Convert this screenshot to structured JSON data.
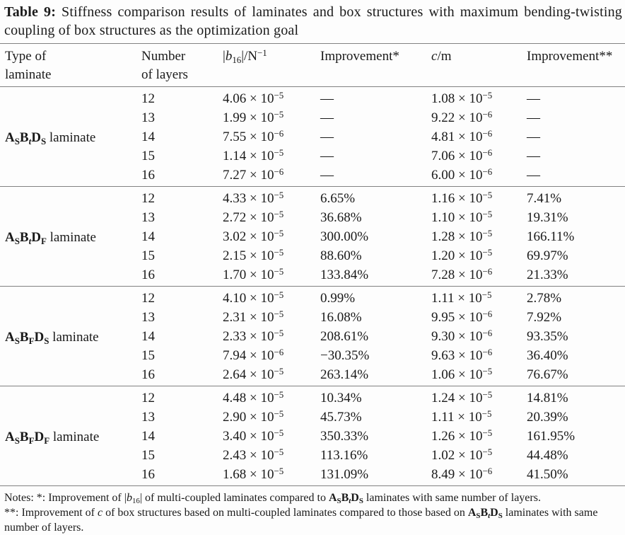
{
  "colors": {
    "background": "#fdfdfd",
    "text": "#1a1a1a",
    "rule": "#818181"
  },
  "caption": "{b}Table 9:{/b} Stiffness comparison results of laminates and box structures with maximum bending-twisting coupling of box structures as the optimization goal",
  "table": {
    "headers": [
      "Type of\nlaminate",
      "Number\nof layers",
      "|{i}b{/i}{sub}16{/sub}|/N{sup}−1{/sup}",
      "Improvement*",
      "{i}c{/i}/m",
      "Improvement**"
    ],
    "groups": [
      {
        "laminate": "{b}A{sub}S{/sub}B{sub}{i}t{/i}{/sub}D{sub}S{/sub}{/b} laminate",
        "rows": [
          {
            "layers": "12",
            "b16": "4.06 × 10{sup}−5{/sup}",
            "imp1": "—",
            "c": "1.08 × 10{sup}−5{/sup}",
            "imp2": "—"
          },
          {
            "layers": "13",
            "b16": "1.99 × 10{sup}−5{/sup}",
            "imp1": "—",
            "c": "9.22 × 10{sup}−6{/sup}",
            "imp2": "—"
          },
          {
            "layers": "14",
            "b16": "7.55 × 10{sup}−6{/sup}",
            "imp1": "—",
            "c": "4.81 × 10{sup}−6{/sup}",
            "imp2": "—"
          },
          {
            "layers": "15",
            "b16": "1.14 × 10{sup}−5{/sup}",
            "imp1": "—",
            "c": "7.06 × 10{sup}−6{/sup}",
            "imp2": "—"
          },
          {
            "layers": "16",
            "b16": "7.27 × 10{sup}−6{/sup}",
            "imp1": "—",
            "c": "6.00 × 10{sup}−6{/sup}",
            "imp2": "—"
          }
        ]
      },
      {
        "laminate": "{b}A{sub}S{/sub}B{sub}{i}t{/i}{/sub}D{sub}F{/sub}{/b} laminate",
        "rows": [
          {
            "layers": "12",
            "b16": "4.33 × 10{sup}−5{/sup}",
            "imp1": "6.65%",
            "c": "1.16 × 10{sup}−5{/sup}",
            "imp2": "7.41%"
          },
          {
            "layers": "13",
            "b16": "2.72 × 10{sup}−5{/sup}",
            "imp1": "36.68%",
            "c": "1.10 × 10{sup}−5{/sup}",
            "imp2": "19.31%"
          },
          {
            "layers": "14",
            "b16": "3.02 × 10{sup}−5{/sup}",
            "imp1": "300.00%",
            "c": "1.28 × 10{sup}−5{/sup}",
            "imp2": "166.11%"
          },
          {
            "layers": "15",
            "b16": "2.15 × 10{sup}−5{/sup}",
            "imp1": "88.60%",
            "c": "1.20 × 10{sup}−5{/sup}",
            "imp2": "69.97%"
          },
          {
            "layers": "16",
            "b16": "1.70 × 10{sup}−5{/sup}",
            "imp1": "133.84%",
            "c": "7.28 × 10{sup}−6{/sup}",
            "imp2": "21.33%"
          }
        ]
      },
      {
        "laminate": "{b}A{sub}S{/sub}B{sub}F{/sub}D{sub}S{/sub}{/b} laminate",
        "rows": [
          {
            "layers": "12",
            "b16": "4.10 × 10{sup}−5{/sup}",
            "imp1": "0.99%",
            "c": "1.11 × 10{sup}−5{/sup}",
            "imp2": "2.78%"
          },
          {
            "layers": "13",
            "b16": "2.31 × 10{sup}−5{/sup}",
            "imp1": "16.08%",
            "c": "9.95 × 10{sup}−6{/sup}",
            "imp2": "7.92%"
          },
          {
            "layers": "14",
            "b16": "2.33 × 10{sup}−5{/sup}",
            "imp1": "208.61%",
            "c": "9.30 × 10{sup}−6{/sup}",
            "imp2": "93.35%"
          },
          {
            "layers": "15",
            "b16": "7.94 × 10{sup}−6{/sup}",
            "imp1": "−30.35%",
            "c": "9.63 × 10{sup}−6{/sup}",
            "imp2": "36.40%"
          },
          {
            "layers": "16",
            "b16": "2.64 × 10{sup}−5{/sup}",
            "imp1": "263.14%",
            "c": "1.06 × 10{sup}−5{/sup}",
            "imp2": "76.67%"
          }
        ]
      },
      {
        "laminate": "{b}A{sub}S{/sub}B{sub}F{/sub}D{sub}F{/sub}{/b} laminate",
        "rows": [
          {
            "layers": "12",
            "b16": "4.48 × 10{sup}−5{/sup}",
            "imp1": "10.34%",
            "c": "1.24 × 10{sup}−5{/sup}",
            "imp2": "14.81%"
          },
          {
            "layers": "13",
            "b16": "2.90 × 10{sup}−5{/sup}",
            "imp1": "45.73%",
            "c": "1.11 × 10{sup}−5{/sup}",
            "imp2": "20.39%"
          },
          {
            "layers": "14",
            "b16": "3.40 × 10{sup}−5{/sup}",
            "imp1": "350.33%",
            "c": "1.26 × 10{sup}−5{/sup}",
            "imp2": "161.95%"
          },
          {
            "layers": "15",
            "b16": "2.43 × 10{sup}−5{/sup}",
            "imp1": "113.16%",
            "c": "1.02 × 10{sup}−5{/sup}",
            "imp2": "44.48%"
          },
          {
            "layers": "16",
            "b16": "1.68 × 10{sup}−5{/sup}",
            "imp1": "131.09%",
            "c": "8.49 × 10{sup}−6{/sup}",
            "imp2": "41.50%"
          }
        ]
      }
    ]
  },
  "notes": [
    "Notes: *: Improvement of |{i}b{/i}{sub}16{/sub}| of multi-coupled laminates compared to {b}A{sub}S{/sub}B{sub}{i}t{/i}{/sub}D{sub}S{/sub}{/b} laminates with same number of layers.",
    "**: Improvement of {i}c{/i} of box structures based on multi-coupled laminates compared to those based on {b}A{sub}S{/sub}B{sub}{i}t{/i}{/sub}D{sub}S{/sub}{/b} laminates with same number of layers."
  ]
}
